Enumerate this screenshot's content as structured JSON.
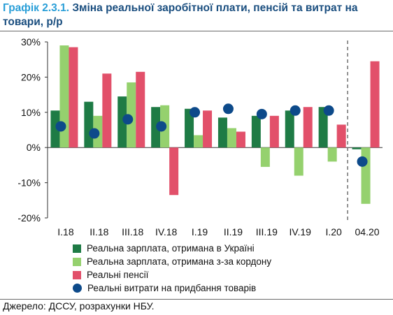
{
  "header": {
    "number": "Графік 2.3.1.",
    "text": "Зміна реальної заробітної плати, пенсій та витрат на товари, р/р"
  },
  "chart_data": {
    "type": "bar",
    "categories": [
      "I.18",
      "II.18",
      "III.18",
      "IV.18",
      "I.19",
      "II.19",
      "III.19",
      "IV.19",
      "I.20",
      "04.20"
    ],
    "series": [
      {
        "name": "Реальна зарплата, отримана в Україні",
        "type": "bar",
        "color": "#1e7b45",
        "values": [
          10.5,
          13,
          14.5,
          11.5,
          11,
          8.5,
          9,
          10.5,
          11.5,
          -0.5
        ]
      },
      {
        "name": "Реальна зарплата, отримана з-за кордону",
        "type": "bar",
        "color": "#95d16e",
        "values": [
          29,
          9,
          18.5,
          12,
          3.5,
          5.5,
          -5.5,
          -8,
          -4,
          -16
        ]
      },
      {
        "name": "Реальні пенсії",
        "type": "bar",
        "color": "#e2506a",
        "values": [
          28.5,
          21,
          21.5,
          -13.5,
          10.5,
          4.5,
          9,
          11.5,
          6.5,
          24.5
        ]
      },
      {
        "name": "Реальні витрати на придбання товарів",
        "type": "scatter",
        "color": "#0d4a8a",
        "values": [
          6,
          4,
          8,
          6,
          10,
          11,
          9.5,
          10.5,
          10.5,
          -4
        ]
      }
    ],
    "y_ticks": [
      "-20%",
      "-10%",
      "0%",
      "10%",
      "20%",
      "30%"
    ],
    "ylim": [
      -20,
      30
    ],
    "separator_between": [
      "I.20",
      "04.20"
    ],
    "legend_position": "bottom"
  },
  "source": "Джерело: ДССУ, розрахунки НБУ."
}
